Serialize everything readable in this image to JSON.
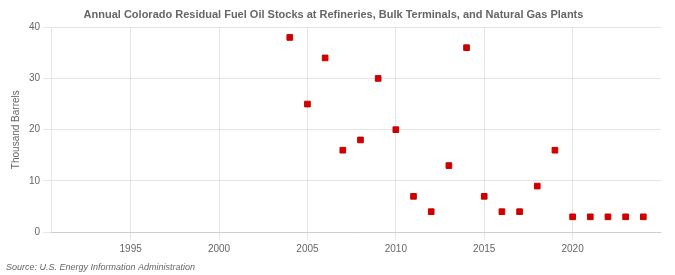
{
  "chart_data": {
    "type": "scatter",
    "title": "Annual Colorado Residual Fuel Oil Stocks at Refineries, Bulk Terminals, and Natural Gas Plants",
    "y_label": "Thousand Barrels",
    "annotations": [
      "Source: U.S. Energy Information Administration"
    ],
    "x": [
      2004,
      2005,
      2006,
      2007,
      2008,
      2009,
      2010,
      2011,
      2012,
      2013,
      2014,
      2015,
      2016,
      2017,
      2018,
      2019,
      2020,
      2021,
      2022,
      2023,
      2024
    ],
    "values": [
      38,
      25,
      34,
      16,
      18,
      30,
      20,
      7,
      4,
      13,
      36,
      7,
      4,
      4,
      9,
      16,
      3,
      3,
      3,
      3,
      3
    ],
    "color": "#cc0000",
    "marker": "square",
    "xlim": [
      1990.5,
      2025
    ],
    "ylim": [
      0,
      40
    ],
    "xticks": [
      1995,
      2000,
      2005,
      2010,
      2015,
      2020
    ],
    "yticks": [
      0,
      10,
      20,
      30,
      40
    ],
    "grid": true
  }
}
